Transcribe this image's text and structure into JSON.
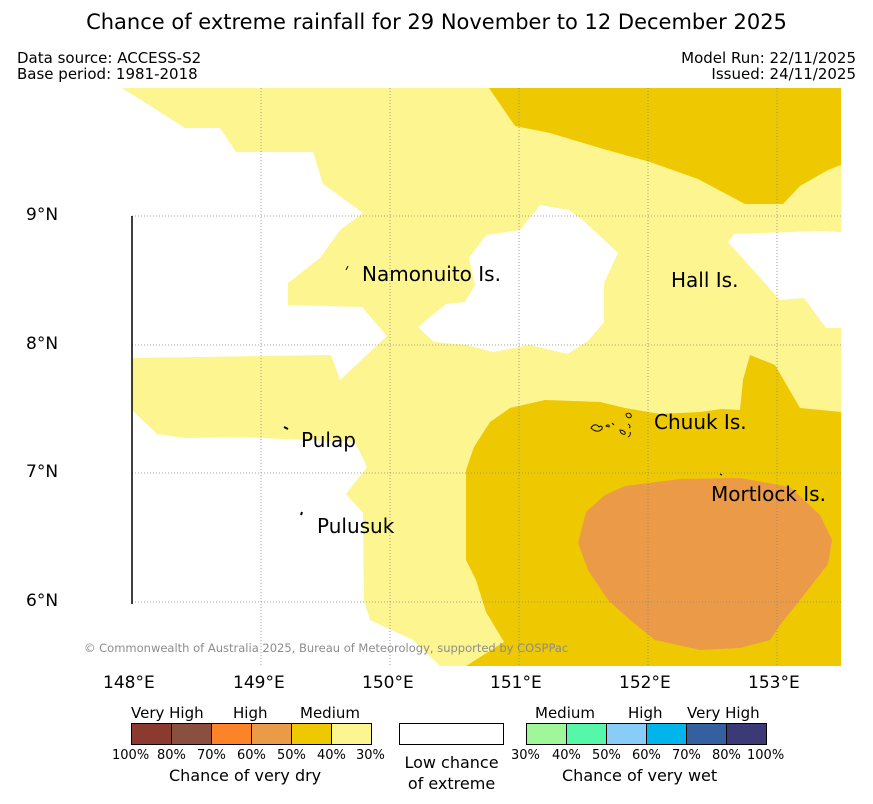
{
  "title": "Chance of extreme rainfall for 29 November to 12 December 2025",
  "meta": {
    "data_source": "Data source: ACCESS-S2",
    "base_period": "Base period: 1981-2018",
    "model_run": "Model Run: 22/11/2025",
    "issued": "Issued: 24/11/2025"
  },
  "axes": {
    "lat_labels": [
      "9°N",
      "8°N",
      "7°N",
      "6°N"
    ],
    "lon_labels": [
      "148°E",
      "149°E",
      "150°E",
      "151°E",
      "152°E",
      "153°E"
    ]
  },
  "places": {
    "namonuito": "Namonuito Is.",
    "hall": "Hall Is.",
    "pulap": "Pulap",
    "chuuk": "Chuuk Is.",
    "mortlock": "Mortlock Is.",
    "pulusuk": "Pulusuk"
  },
  "copyright": "© Commonwealth of Australia 2025, Bureau of Meteorology, supported by COSPPac",
  "legend": {
    "dry": {
      "headers": [
        "Very High",
        "High",
        "Medium"
      ],
      "ticks": [
        "100%",
        "80%",
        "70%",
        "60%",
        "50%",
        "40%",
        "30%"
      ],
      "colors": [
        "#8b3a2f",
        "#8b4f3f",
        "#fd8328",
        "#eb9b48",
        "#eec800",
        "#fdf58f"
      ],
      "caption": "Chance of very dry"
    },
    "low": {
      "caption": "Low chance of extreme"
    },
    "wet": {
      "headers": [
        "Medium",
        "High",
        "Very High"
      ],
      "ticks": [
        "30%",
        "40%",
        "50%",
        "60%",
        "70%",
        "80%",
        "100%"
      ],
      "colors": [
        "#a0f79a",
        "#57f7aa",
        "#88ccf8",
        "#00b4ec",
        "#35609f",
        "#3c3a76"
      ],
      "caption": "Chance of very wet"
    }
  },
  "colors": {
    "medium_dry": "#fdf58f",
    "high_dry": "#eec800",
    "high_dry_2": "#eb9b48",
    "grid": "#888888"
  }
}
